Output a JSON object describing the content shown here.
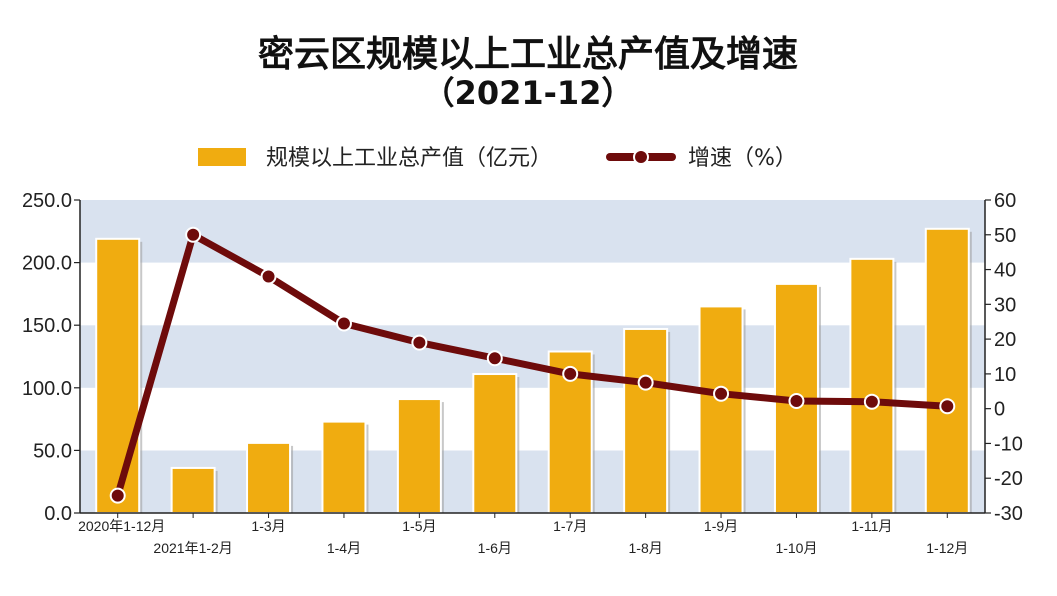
{
  "chart_data": {
    "type": "bar-line",
    "title": "密云区规模以上工业总产值及增速",
    "subtitle": "（2021-12）",
    "categories": [
      "2020年1-12月",
      "2021年1-2月",
      "1-3月",
      "1-4月",
      "1-5月",
      "1-6月",
      "1-7月",
      "1-8月",
      "1-9月",
      "1-10月",
      "1-11月",
      "1-12月"
    ],
    "series": [
      {
        "name": "规模以上工业总产值（亿元）",
        "type": "bar",
        "axis": "left",
        "color": "#f0ac10",
        "values": [
          219,
          36,
          56,
          73,
          91,
          111,
          129,
          147,
          165,
          183,
          203,
          227
        ]
      },
      {
        "name": "增速（%）",
        "type": "line",
        "axis": "right",
        "color": "#6e0b0b",
        "values": [
          -25.0,
          50.0,
          38.0,
          24.5,
          19.0,
          14.5,
          10.0,
          7.5,
          4.3,
          2.2,
          2.0,
          0.7
        ]
      }
    ],
    "y_left": {
      "range": [
        0,
        250
      ],
      "ticks": [
        "0.0",
        "50.0",
        "100.0",
        "150.0",
        "200.0",
        "250.0"
      ]
    },
    "y_right": {
      "range": [
        -30,
        60
      ],
      "ticks": [
        "-30",
        "-20",
        "-10",
        "0",
        "10",
        "20",
        "30",
        "40",
        "50",
        "60"
      ]
    },
    "band_colors": [
      "#d9e2ef",
      "#ffffff"
    ],
    "legend_position": "top-center",
    "grid": false
  }
}
